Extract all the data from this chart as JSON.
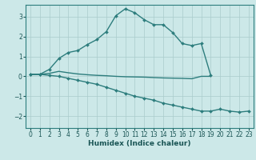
{
  "xlabel": "Humidex (Indice chaleur)",
  "bg_color": "#cce8e8",
  "grid_color": "#aacccc",
  "line_color": "#2d7d7d",
  "xlim": [
    -0.5,
    23.5
  ],
  "ylim": [
    -2.6,
    3.6
  ],
  "yticks": [
    -2,
    -1,
    0,
    1,
    2,
    3
  ],
  "xticks": [
    0,
    1,
    2,
    3,
    4,
    5,
    6,
    7,
    8,
    9,
    10,
    11,
    12,
    13,
    14,
    15,
    16,
    17,
    18,
    19,
    20,
    21,
    22,
    23
  ],
  "series": [
    {
      "x": [
        0,
        1,
        2,
        3,
        4,
        5,
        6,
        7,
        8,
        9,
        10,
        11,
        12,
        13,
        14,
        15,
        16,
        17,
        18,
        19
      ],
      "y": [
        0.1,
        0.1,
        0.35,
        0.9,
        1.2,
        1.3,
        1.6,
        1.85,
        2.25,
        3.05,
        3.4,
        3.2,
        2.85,
        2.6,
        2.6,
        2.2,
        1.65,
        1.55,
        1.65,
        0.05
      ],
      "marker": true,
      "lw": 1.0
    },
    {
      "x": [
        0,
        1,
        2,
        3,
        4,
        5,
        6,
        7,
        8,
        9,
        10,
        11,
        12,
        13,
        14,
        15,
        16,
        17,
        18,
        19
      ],
      "y": [
        0.1,
        0.1,
        0.15,
        0.25,
        0.18,
        0.12,
        0.08,
        0.05,
        0.03,
        0.0,
        -0.02,
        -0.03,
        -0.04,
        -0.06,
        -0.08,
        -0.09,
        -0.1,
        -0.12,
        0.0,
        0.0
      ],
      "marker": false,
      "lw": 1.0
    },
    {
      "x": [
        0,
        1,
        2,
        3,
        4,
        5,
        6,
        7,
        8,
        9,
        10,
        11,
        12,
        13,
        14,
        15,
        16,
        17,
        18,
        19,
        20,
        21,
        22,
        23
      ],
      "y": [
        0.1,
        0.1,
        0.05,
        0.0,
        -0.1,
        -0.2,
        -0.3,
        -0.4,
        -0.55,
        -0.7,
        -0.85,
        -1.0,
        -1.1,
        -1.2,
        -1.35,
        -1.45,
        -1.55,
        -1.65,
        -1.75,
        -1.75,
        -1.65,
        -1.75,
        -1.8,
        -1.75
      ],
      "marker": true,
      "lw": 1.0
    }
  ]
}
